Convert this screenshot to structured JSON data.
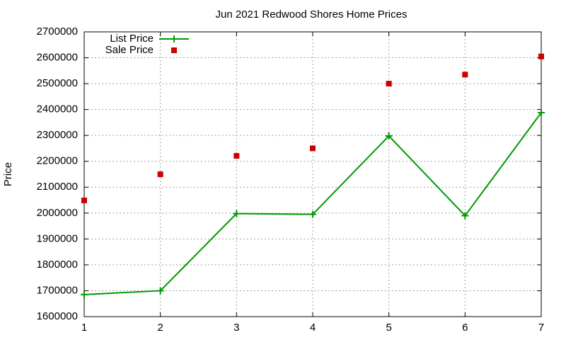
{
  "chart_data": {
    "type": "line",
    "title": "Jun 2021 Redwood Shores Home Prices",
    "y_label": "Price",
    "x": [
      1,
      2,
      3,
      4,
      5,
      6,
      7
    ],
    "series": [
      {
        "name": "List Price",
        "color": "#009900",
        "style": "linespoints",
        "marker": "plus",
        "values": [
          1685000,
          1700000,
          1998000,
          1995000,
          2298000,
          1990000,
          2388000
        ]
      },
      {
        "name": "Sale Price",
        "color": "#cc0000",
        "style": "points",
        "marker": "square",
        "values": [
          2049000,
          2150000,
          2221000,
          2250000,
          2500000,
          2535000,
          2605000
        ]
      }
    ],
    "xlim": [
      1,
      7
    ],
    "xticks": [
      1,
      2,
      3,
      4,
      5,
      6,
      7
    ],
    "ylim": [
      1600000,
      2700000
    ],
    "yticks": [
      1600000,
      1700000,
      1800000,
      1900000,
      2000000,
      2100000,
      2200000,
      2300000,
      2400000,
      2500000,
      2600000,
      2700000
    ],
    "grid": true,
    "legend": "top-left"
  }
}
